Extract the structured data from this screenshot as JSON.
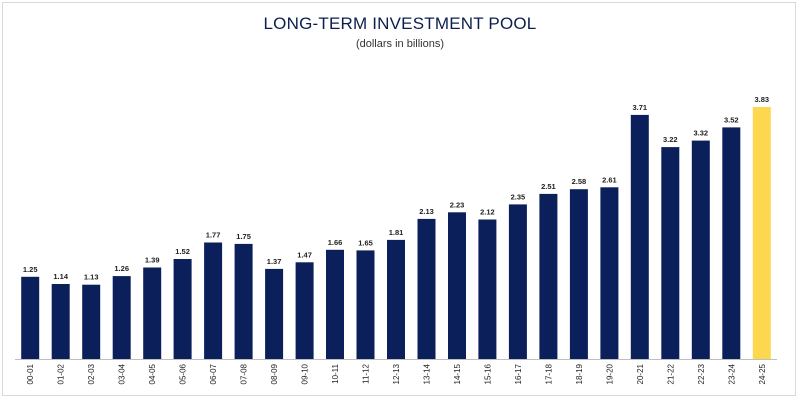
{
  "chart_data": {
    "type": "bar",
    "title": "LONG-TERM INVESTMENT POOL",
    "subtitle": "(dollars in billions)",
    "xlabel": "",
    "ylabel": "",
    "ylim": [
      0,
      3.83
    ],
    "grid": false,
    "legend": "none",
    "categories": [
      "00-01",
      "01-02",
      "02-03",
      "03-04",
      "04-05",
      "05-06",
      "06-07",
      "07-08",
      "08-09",
      "09-10",
      "10-11",
      "11-12",
      "12-13",
      "13-14",
      "14-15",
      "15-16",
      "16-17",
      "17-18",
      "18-19",
      "19-20",
      "20-21",
      "21-22",
      "22-23",
      "23-24",
      "24-25"
    ],
    "values": [
      1.25,
      1.14,
      1.13,
      1.26,
      1.39,
      1.52,
      1.77,
      1.75,
      1.37,
      1.47,
      1.66,
      1.65,
      1.81,
      2.13,
      2.23,
      2.12,
      2.35,
      2.51,
      2.58,
      2.61,
      3.71,
      3.22,
      3.32,
      3.52,
      3.83
    ],
    "value_labels": [
      "1.25",
      "1.14",
      "1.13",
      "1.26",
      "1.39",
      "1.52",
      "1.77",
      "1.75",
      "1.37",
      "1.47",
      "1.66",
      "1.65",
      "1.81",
      "2.13",
      "2.23",
      "2.12",
      "2.35",
      "2.51",
      "2.58",
      "2.61",
      "3.71",
      "3.22",
      "3.32",
      "3.52",
      "3.83"
    ],
    "colors": {
      "bar": "#0b1f5b",
      "highlight": "#fdd84e",
      "highlight_index": 24
    }
  }
}
